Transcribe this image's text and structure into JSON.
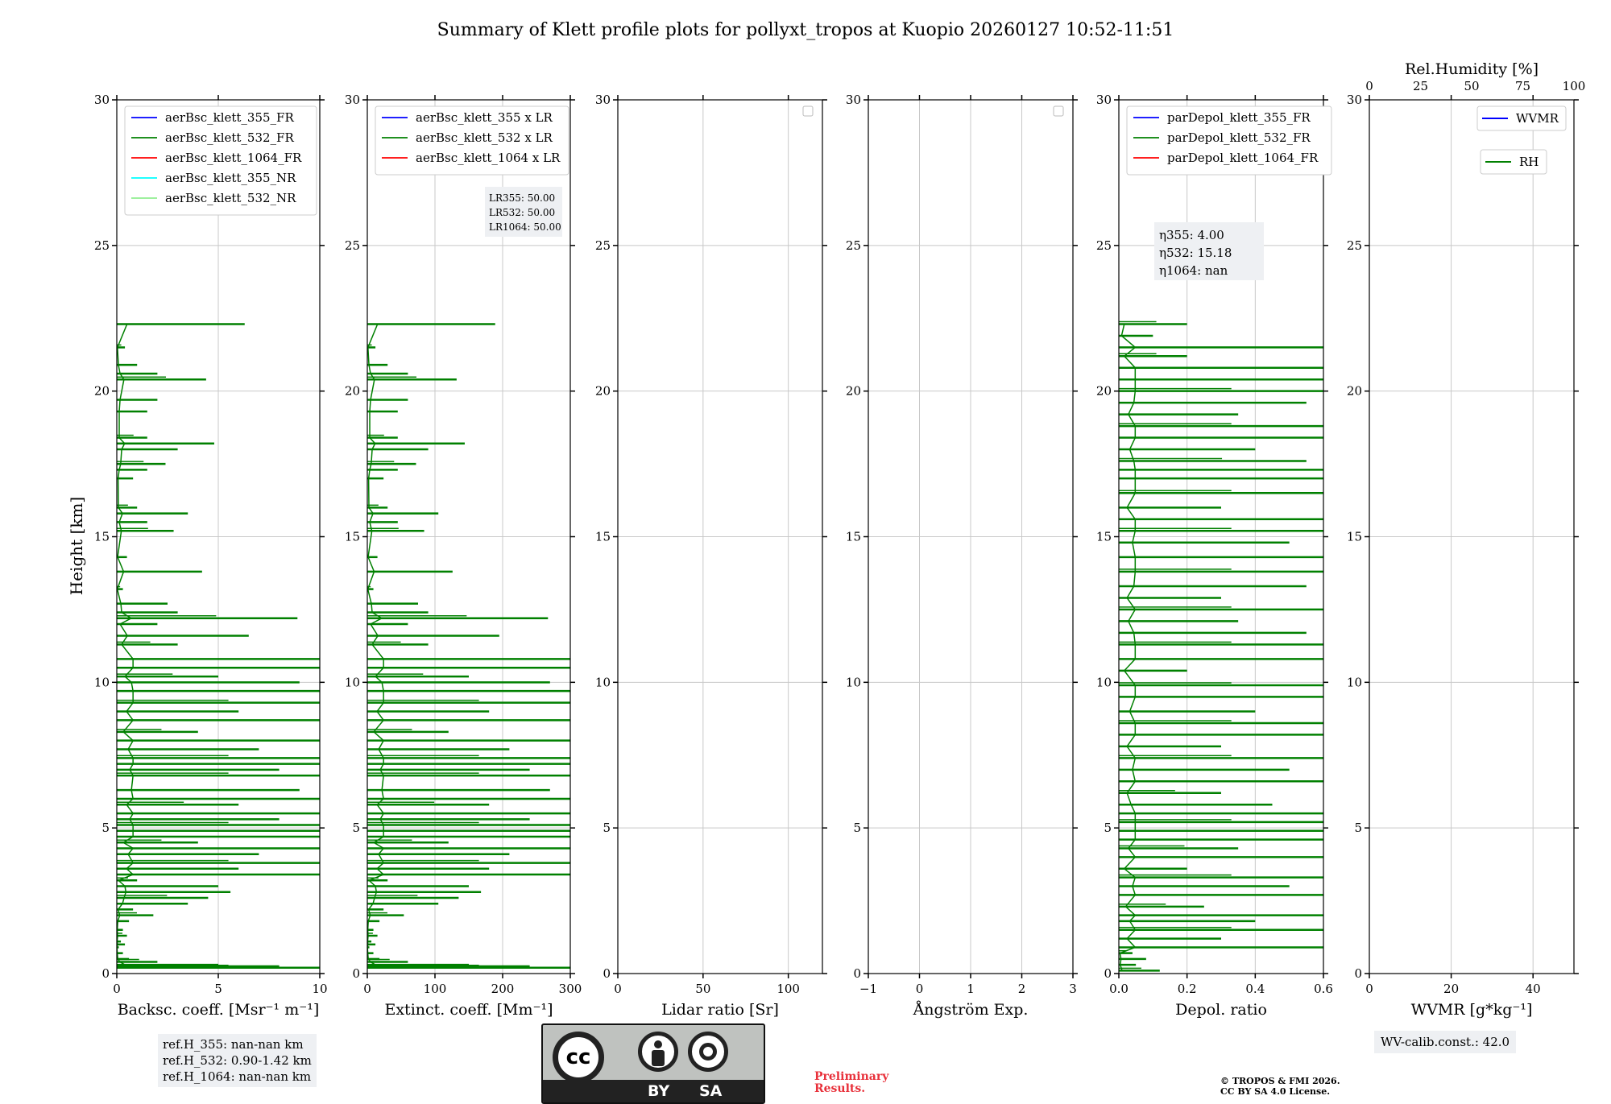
{
  "title": "Summary of Klett profile plots for pollyxt_tropos at Kuopio 20260127 10:52-11:51",
  "colors": {
    "blue": "#0000ff",
    "green": "#008000",
    "red": "#ff0000",
    "cyan": "#00ffff",
    "lightgreen": "#90ee90",
    "grid": "#c8c8c8",
    "box": "#eef0f3",
    "prelim": "#e8303a"
  },
  "chart_data": [
    {
      "type": "line",
      "name": "backscatter",
      "ylabel": "Height [km]",
      "xlabel": "Backsc. coeff. [Msr⁻¹ m⁻¹]",
      "xlim": [
        0,
        10
      ],
      "ylim": [
        0,
        30
      ],
      "xticks": [
        "0",
        "5",
        "10"
      ],
      "yticks": [
        "0",
        "5",
        "10",
        "15",
        "20",
        "25",
        "30"
      ],
      "legend": [
        "aerBsc_klett_355_FR",
        "aerBsc_klett_532_FR",
        "aerBsc_klett_1064_FR",
        "aerBsc_klett_355_NR",
        "aerBsc_klett_532_NR"
      ],
      "legend_position": "top-left",
      "series": [
        {
          "name": "aerBsc_klett_532_FR",
          "profile": [
            [
              0.2,
              10
            ],
            [
              0.25,
              8
            ],
            [
              0.3,
              5
            ],
            [
              0.4,
              2
            ],
            [
              0.5,
              0.6
            ],
            [
              0.7,
              0.3
            ],
            [
              0.9,
              0.1
            ],
            [
              1.0,
              0.4
            ],
            [
              1.1,
              0.2
            ],
            [
              1.3,
              0.5
            ],
            [
              1.5,
              0.3
            ],
            [
              1.8,
              0.6
            ],
            [
              2.0,
              1.8
            ],
            [
              2.2,
              0.8
            ],
            [
              2.4,
              3.5
            ],
            [
              2.6,
              4.5
            ],
            [
              2.8,
              5.6
            ],
            [
              3.0,
              5.0
            ],
            [
              3.2,
              1.0
            ],
            [
              3.4,
              10
            ],
            [
              3.6,
              6.0
            ],
            [
              3.8,
              10
            ],
            [
              4.1,
              7.0
            ],
            [
              4.3,
              10
            ],
            [
              4.5,
              4.0
            ],
            [
              4.7,
              10
            ],
            [
              4.9,
              10
            ],
            [
              5.1,
              10
            ],
            [
              5.3,
              8.0
            ],
            [
              5.5,
              10
            ],
            [
              5.8,
              6.0
            ],
            [
              6.0,
              10
            ],
            [
              6.3,
              9.0
            ],
            [
              6.8,
              10
            ],
            [
              7.0,
              8.0
            ],
            [
              7.2,
              10
            ],
            [
              7.4,
              10
            ],
            [
              7.7,
              7.0
            ],
            [
              8.0,
              10
            ],
            [
              8.3,
              4.0
            ],
            [
              8.7,
              10
            ],
            [
              9.0,
              6.0
            ],
            [
              9.3,
              10
            ],
            [
              9.7,
              10
            ],
            [
              10.0,
              9.0
            ],
            [
              10.2,
              5.0
            ],
            [
              10.5,
              10
            ],
            [
              10.8,
              10
            ],
            [
              11.3,
              3.0
            ],
            [
              11.6,
              6.5
            ],
            [
              12.0,
              2.0
            ],
            [
              12.2,
              8.9
            ],
            [
              12.4,
              3.0
            ],
            [
              12.7,
              2.5
            ],
            [
              13.2,
              0.3
            ],
            [
              13.8,
              4.2
            ],
            [
              14.3,
              0.5
            ],
            [
              15.2,
              2.8
            ],
            [
              15.5,
              1.5
            ],
            [
              15.8,
              3.5
            ],
            [
              16.0,
              1.0
            ],
            [
              17.0,
              0.8
            ],
            [
              17.3,
              1.5
            ],
            [
              17.5,
              2.4
            ],
            [
              18.0,
              3.0
            ],
            [
              18.2,
              4.8
            ],
            [
              18.4,
              1.5
            ],
            [
              19.3,
              1.5
            ],
            [
              19.7,
              2.0
            ],
            [
              20.4,
              4.4
            ],
            [
              20.6,
              2.0
            ],
            [
              20.9,
              1.0
            ],
            [
              21.5,
              0.4
            ],
            [
              22.3,
              6.3
            ]
          ]
        }
      ]
    },
    {
      "type": "line",
      "name": "extinction",
      "xlabel": "Extinct. coeff. [Mm⁻¹]",
      "xlim": [
        0,
        300
      ],
      "ylim": [
        0,
        30
      ],
      "xticks": [
        "0",
        "100",
        "200",
        "300"
      ],
      "yticks": [
        "0",
        "5",
        "10",
        "15",
        "20",
        "25",
        "30"
      ],
      "legend": [
        "aerBsc_klett_355 x LR",
        "aerBsc_klett_532 x LR",
        "aerBsc_klett_1064 x LR"
      ],
      "legend_position": "top-left",
      "annotation": [
        "LR355: 50.00",
        "LR532: 50.00",
        "LR1064: 50.00"
      ],
      "series": [
        {
          "name": "aerBsc_klett_532 x LR",
          "scale": 30
        }
      ]
    },
    {
      "type": "line",
      "name": "lidar-ratio",
      "xlabel": "Lidar ratio [Sr]",
      "xlim": [
        0,
        120
      ],
      "ylim": [
        0,
        30
      ],
      "xticks": [
        "0",
        "50",
        "100"
      ],
      "yticks": [
        "0",
        "5",
        "10",
        "15",
        "20",
        "25",
        "30"
      ],
      "series": []
    },
    {
      "type": "line",
      "name": "angstrom",
      "xlabel": "Ångström Exp.",
      "xlim": [
        -1,
        3
      ],
      "ylim": [
        0,
        30
      ],
      "xticks": [
        "−1",
        "0",
        "1",
        "2",
        "3"
      ],
      "yticks": [
        "0",
        "5",
        "10",
        "15",
        "20",
        "25",
        "30"
      ],
      "series": []
    },
    {
      "type": "line",
      "name": "depol",
      "xlabel": "Depol. ratio",
      "xlim": [
        0,
        0.6
      ],
      "ylim": [
        0,
        30
      ],
      "xticks": [
        "0.0",
        "0.2",
        "0.4",
        "0.6"
      ],
      "yticks": [
        "0",
        "5",
        "10",
        "15",
        "20",
        "25",
        "30"
      ],
      "legend": [
        "parDepol_klett_355_FR",
        "parDepol_klett_532_FR",
        "parDepol_klett_1064_FR"
      ],
      "legend_position": "top-left",
      "annotation": [
        "η355: 4.00",
        "η532: 15.18",
        "η1064: nan"
      ],
      "series": [
        {
          "name": "parDepol_klett_532_FR",
          "profile": [
            [
              0.1,
              0.12
            ],
            [
              0.3,
              0.05
            ],
            [
              0.5,
              0.08
            ],
            [
              0.7,
              0.04
            ],
            [
              0.9,
              0.6
            ],
            [
              1.2,
              0.3
            ],
            [
              1.5,
              0.6
            ],
            [
              1.8,
              0.4
            ],
            [
              2.0,
              0.6
            ],
            [
              2.3,
              0.25
            ],
            [
              2.7,
              0.6
            ],
            [
              3.0,
              0.5
            ],
            [
              3.3,
              0.6
            ],
            [
              3.6,
              0.2
            ],
            [
              4.0,
              0.6
            ],
            [
              4.3,
              0.35
            ],
            [
              4.6,
              0.6
            ],
            [
              4.9,
              0.6
            ],
            [
              5.2,
              0.6
            ],
            [
              5.5,
              0.6
            ],
            [
              5.8,
              0.45
            ],
            [
              6.2,
              0.3
            ],
            [
              6.6,
              0.6
            ],
            [
              7.0,
              0.5
            ],
            [
              7.4,
              0.6
            ],
            [
              7.8,
              0.3
            ],
            [
              8.2,
              0.6
            ],
            [
              8.6,
              0.6
            ],
            [
              9.0,
              0.4
            ],
            [
              9.5,
              0.6
            ],
            [
              9.9,
              0.6
            ],
            [
              10.4,
              0.2
            ],
            [
              10.8,
              0.6
            ],
            [
              11.3,
              0.6
            ],
            [
              11.7,
              0.55
            ],
            [
              12.1,
              0.35
            ],
            [
              12.5,
              0.6
            ],
            [
              12.9,
              0.3
            ],
            [
              13.3,
              0.55
            ],
            [
              13.8,
              0.6
            ],
            [
              14.3,
              0.6
            ],
            [
              14.8,
              0.5
            ],
            [
              15.2,
              0.6
            ],
            [
              15.6,
              0.6
            ],
            [
              16.0,
              0.3
            ],
            [
              16.5,
              0.6
            ],
            [
              17.0,
              0.6
            ],
            [
              17.3,
              0.6
            ],
            [
              17.6,
              0.55
            ],
            [
              18.0,
              0.4
            ],
            [
              18.4,
              0.6
            ],
            [
              18.8,
              0.6
            ],
            [
              19.2,
              0.35
            ],
            [
              19.6,
              0.55
            ],
            [
              20.0,
              0.6
            ],
            [
              20.4,
              0.6
            ],
            [
              20.8,
              0.6
            ],
            [
              21.2,
              0.2
            ],
            [
              21.5,
              0.6
            ],
            [
              21.9,
              0.1
            ],
            [
              22.3,
              0.2
            ]
          ]
        }
      ]
    },
    {
      "type": "line",
      "name": "wvmr",
      "xlabel": "WVMR [g*kg⁻¹]",
      "x2label": "Rel.Humidity [%]",
      "xlim": [
        0,
        50
      ],
      "ylim": [
        0,
        30
      ],
      "xticks": [
        "0",
        "20",
        "40"
      ],
      "x2ticks": [
        "0",
        "25",
        "50",
        "75",
        "100"
      ],
      "yticks": [
        "0",
        "5",
        "10",
        "15",
        "20",
        "25",
        "30"
      ],
      "legend": [
        "WVMR",
        "RH"
      ],
      "legend_position": "top-right",
      "series": []
    }
  ],
  "refbox": [
    "ref.H_355: nan-nan km",
    "ref.H_532: 0.90-1.42 km",
    "ref.H_1064: nan-nan km"
  ],
  "wvbox": "WV-calib.const.: 42.0",
  "cc": {
    "logo": "cc",
    "by": "BY",
    "sa": "SA"
  },
  "preliminary": [
    "Preliminary",
    "Results."
  ],
  "copyright": [
    "© TROPOS & FMI 2026.",
    "CC BY SA 4.0 License."
  ]
}
